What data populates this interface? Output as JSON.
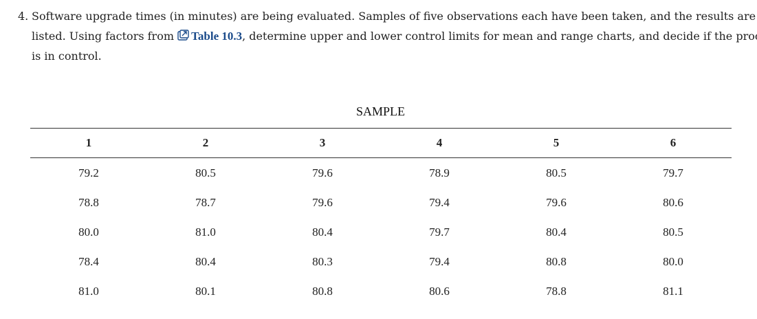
{
  "question": {
    "number": "4.",
    "line1": "Software upgrade times (in minutes) are being evaluated. Samples of five observations each have been taken, and the results are as",
    "line2_before": "listed. Using factors from",
    "link_text": "Table 10.3",
    "line2_after": ", determine upper and lower control limits for mean and range charts, and decide if the process",
    "line3": "is in control."
  },
  "table": {
    "caption": "SAMPLE",
    "headers": [
      "1",
      "2",
      "3",
      "4",
      "5",
      "6"
    ],
    "rows": [
      [
        "79.2",
        "80.5",
        "79.6",
        "78.9",
        "80.5",
        "79.7"
      ],
      [
        "78.8",
        "78.7",
        "79.6",
        "79.4",
        "79.6",
        "80.6"
      ],
      [
        "80.0",
        "81.0",
        "80.4",
        "79.7",
        "80.4",
        "80.5"
      ],
      [
        "78.4",
        "80.4",
        "80.3",
        "79.4",
        "80.8",
        "80.0"
      ],
      [
        "81.0",
        "80.1",
        "80.8",
        "80.6",
        "78.8",
        "81.1"
      ]
    ]
  },
  "colors": {
    "link": "#1a4a8a",
    "text": "#222222",
    "rule": "#333333"
  },
  "icons": {
    "link_icon": "external-link-icon"
  }
}
